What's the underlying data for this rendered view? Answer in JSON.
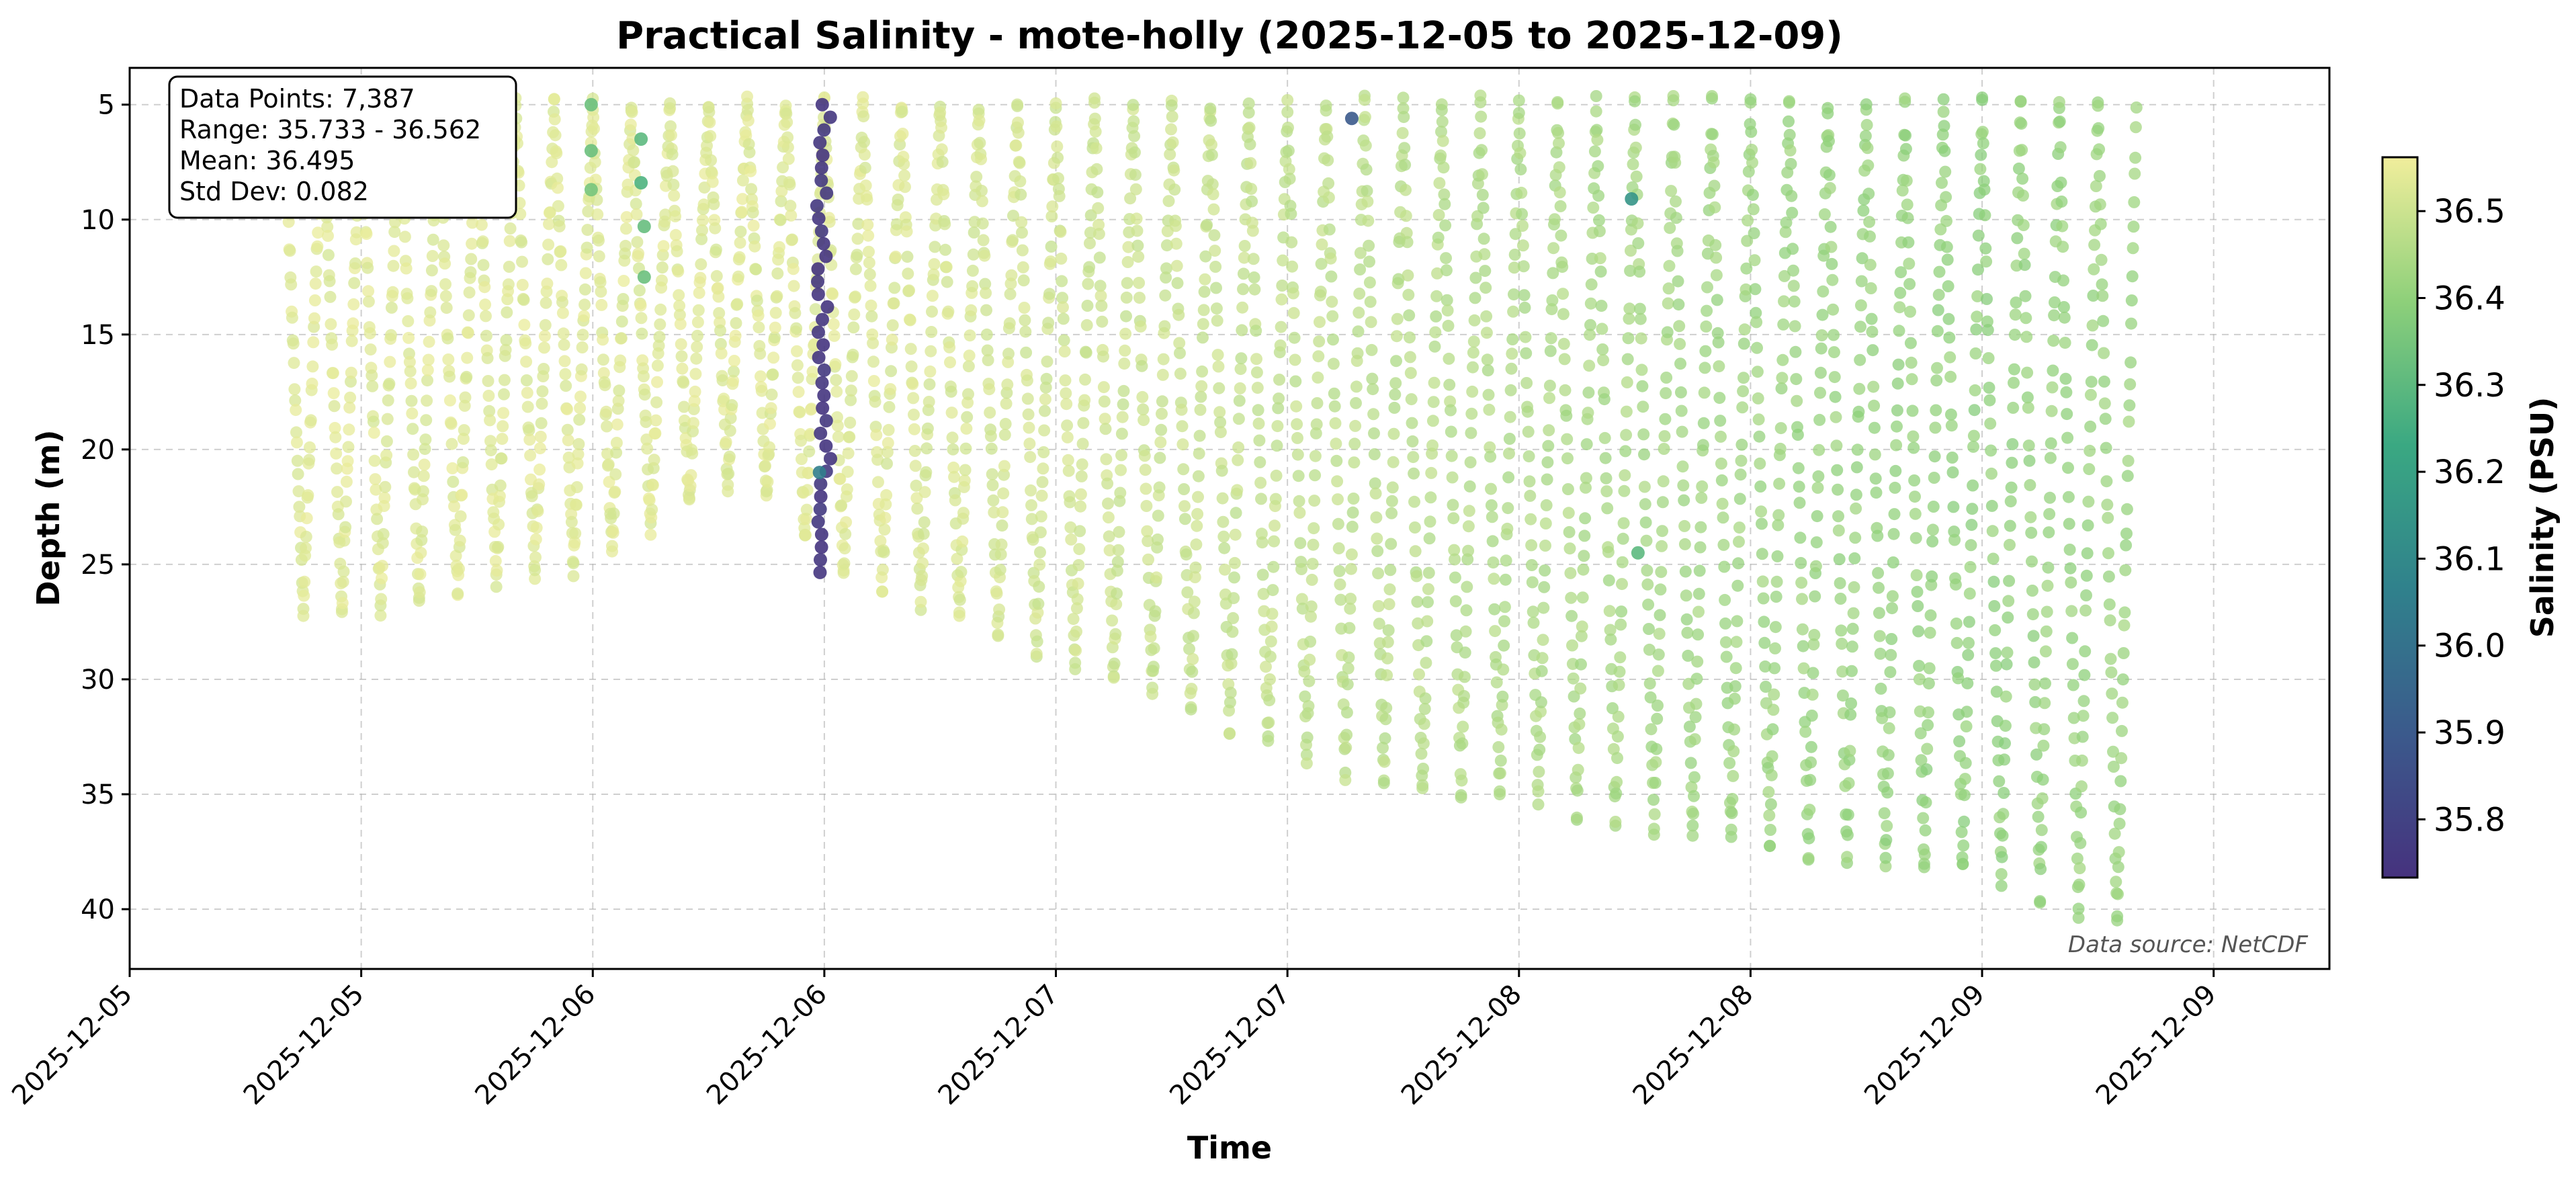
{
  "chart_data": {
    "type": "scatter",
    "title": "Practical Salinity - mote-holly (2025-12-05 to 2025-12-09)",
    "xlabel": "Time",
    "ylabel": "Depth (m)",
    "x_axis_type": "datetime",
    "x_range": [
      "2025-12-05T00:00",
      "2025-12-09T18:00"
    ],
    "x_ticks": [
      {
        "t": "2025-12-05T00:00",
        "label": "2025-12-05"
      },
      {
        "t": "2025-12-05T12:00",
        "label": "2025-12-05"
      },
      {
        "t": "2025-12-06T00:00",
        "label": "2025-12-06"
      },
      {
        "t": "2025-12-06T12:00",
        "label": "2025-12-06"
      },
      {
        "t": "2025-12-07T00:00",
        "label": "2025-12-07"
      },
      {
        "t": "2025-12-07T12:00",
        "label": "2025-12-07"
      },
      {
        "t": "2025-12-08T00:00",
        "label": "2025-12-08"
      },
      {
        "t": "2025-12-08T12:00",
        "label": "2025-12-08"
      },
      {
        "t": "2025-12-09T00:00",
        "label": "2025-12-09"
      },
      {
        "t": "2025-12-09T12:00",
        "label": "2025-12-09"
      }
    ],
    "y_inverted": true,
    "ylim": [
      42.6,
      3.4
    ],
    "y_ticks": [
      5,
      10,
      15,
      20,
      25,
      30,
      35,
      40
    ],
    "grid": true,
    "color_by": "Salinity (PSU)",
    "colormap": "viridis",
    "colorbar": {
      "label": "Salinity (PSU)",
      "range": [
        35.733,
        36.562
      ],
      "ticks": [
        35.8,
        35.9,
        36.0,
        36.1,
        36.2,
        36.3,
        36.4,
        36.5
      ],
      "colors": [
        "#46327e",
        "#3b5a8c",
        "#30818c",
        "#3aa882",
        "#8ed07a",
        "#f1ee9c"
      ]
    },
    "stats_box": {
      "placement": "top-left",
      "lines": [
        "Data Points: 7,387",
        "Range: 35.733 - 36.562",
        "Mean: 36.495",
        "Std Dev: 0.082"
      ]
    },
    "source_note": "Data source: NetCDF",
    "profiles": {
      "count": 96,
      "start": "2025-12-05T08:00",
      "end": "2025-12-09T08:00",
      "min_depth": 5,
      "max_depth_series": [
        {
          "t": "2025-12-05T08:00",
          "depth": 27
        },
        {
          "t": "2025-12-05T12:00",
          "depth": 27
        },
        {
          "t": "2025-12-05T18:00",
          "depth": 26
        },
        {
          "t": "2025-12-06T00:00",
          "depth": 25
        },
        {
          "t": "2025-12-06T04:00",
          "depth": 23
        },
        {
          "t": "2025-12-06T08:00",
          "depth": 21
        },
        {
          "t": "2025-12-06T12:00",
          "depth": 25
        },
        {
          "t": "2025-12-06T18:00",
          "depth": 27
        },
        {
          "t": "2025-12-07T00:00",
          "depth": 29
        },
        {
          "t": "2025-12-07T06:00",
          "depth": 31
        },
        {
          "t": "2025-12-07T12:00",
          "depth": 33
        },
        {
          "t": "2025-12-07T18:00",
          "depth": 35
        },
        {
          "t": "2025-12-08T00:00",
          "depth": 35
        },
        {
          "t": "2025-12-08T06:00",
          "depth": 36.5
        },
        {
          "t": "2025-12-08T12:00",
          "depth": 37
        },
        {
          "t": "2025-12-08T18:00",
          "depth": 38
        },
        {
          "t": "2025-12-09T00:00",
          "depth": 38.5
        },
        {
          "t": "2025-12-09T08:00",
          "depth": 41
        }
      ],
      "salinity_trend": [
        {
          "t": "2025-12-05T08:00",
          "salinity": 36.53
        },
        {
          "t": "2025-12-06T12:00",
          "salinity": 36.53
        },
        {
          "t": "2025-12-07T12:00",
          "salinity": 36.48
        },
        {
          "t": "2025-12-08T12:00",
          "salinity": 36.42
        },
        {
          "t": "2025-12-09T00:00",
          "salinity": 36.4
        },
        {
          "t": "2025-12-09T08:00",
          "salinity": 36.42
        }
      ]
    },
    "anomaly_profile": {
      "t": "2025-12-06T12:00",
      "depth_range": [
        5,
        25.5
      ],
      "salinity": 35.74
    },
    "outliers": [
      {
        "t": "2025-12-05T23:55",
        "depth": 5,
        "salinity": 36.33
      },
      {
        "t": "2025-12-05T23:55",
        "depth": 7,
        "salinity": 36.33
      },
      {
        "t": "2025-12-05T23:55",
        "depth": 8.7,
        "salinity": 36.35
      },
      {
        "t": "2025-12-06T02:30",
        "depth": 6.5,
        "salinity": 36.3
      },
      {
        "t": "2025-12-06T02:30",
        "depth": 8.4,
        "salinity": 36.27
      },
      {
        "t": "2025-12-06T02:40",
        "depth": 10.3,
        "salinity": 36.32
      },
      {
        "t": "2025-12-06T02:40",
        "depth": 12.5,
        "salinity": 36.33
      },
      {
        "t": "2025-12-06T11:45",
        "depth": 21,
        "salinity": 36.05
      },
      {
        "t": "2025-12-07T15:20",
        "depth": 5.6,
        "salinity": 35.9
      },
      {
        "t": "2025-12-08T05:50",
        "depth": 9.1,
        "salinity": 36.15
      },
      {
        "t": "2025-12-08T06:10",
        "depth": 24.5,
        "salinity": 36.3
      }
    ]
  }
}
